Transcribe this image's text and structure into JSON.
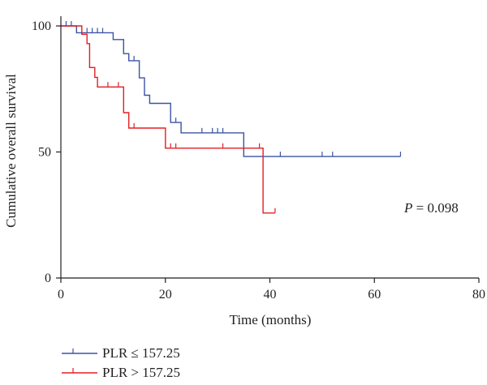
{
  "chart_data": {
    "type": "line",
    "subtype": "kaplan-meier",
    "title": "",
    "xlabel": "Time (months)",
    "ylabel": "Cumulative overall survival",
    "xlim": [
      0,
      80
    ],
    "ylim": [
      0,
      100
    ],
    "xticks": [
      0,
      20,
      40,
      60,
      80
    ],
    "yticks": [
      0,
      50,
      100
    ],
    "grid": false,
    "legend_position": "bottom-left",
    "annotation": {
      "prefix": "P",
      "text": " = 0.098"
    },
    "series": [
      {
        "name": "PLR ≤ 157.25",
        "color": "#3a53a4",
        "steps": [
          [
            0,
            100
          ],
          [
            3,
            100
          ],
          [
            3,
            97.3
          ],
          [
            10,
            97.3
          ],
          [
            10,
            94.6
          ],
          [
            12,
            94.6
          ],
          [
            12,
            89
          ],
          [
            13,
            89
          ],
          [
            13,
            86.2
          ],
          [
            15,
            86.2
          ],
          [
            15,
            79.4
          ],
          [
            16,
            79.4
          ],
          [
            16,
            72.5
          ],
          [
            17,
            72.5
          ],
          [
            17,
            69.3
          ],
          [
            21,
            69.3
          ],
          [
            21,
            61.7
          ],
          [
            23,
            61.7
          ],
          [
            23,
            57.6
          ],
          [
            35,
            57.6
          ],
          [
            35,
            48.2
          ],
          [
            65,
            48.2
          ]
        ],
        "censored": [
          [
            1,
            100
          ],
          [
            2,
            100
          ],
          [
            5,
            97.3
          ],
          [
            6,
            97.3
          ],
          [
            7,
            97.3
          ],
          [
            8,
            97.3
          ],
          [
            14,
            86.2
          ],
          [
            22,
            61.7
          ],
          [
            27,
            57.6
          ],
          [
            29,
            57.6
          ],
          [
            30,
            57.6
          ],
          [
            31,
            57.6
          ],
          [
            42,
            48.2
          ],
          [
            50,
            48.2
          ],
          [
            52,
            48.2
          ],
          [
            65,
            48.2
          ]
        ]
      },
      {
        "name": "PLR > 157.25",
        "color": "#e31e24",
        "steps": [
          [
            0,
            100
          ],
          [
            4,
            100
          ],
          [
            4,
            96.7
          ],
          [
            5,
            96.7
          ],
          [
            5,
            93
          ],
          [
            5.5,
            93
          ],
          [
            5.5,
            83.5
          ],
          [
            6.5,
            83.5
          ],
          [
            6.5,
            79.6
          ],
          [
            7,
            79.6
          ],
          [
            7,
            75.8
          ],
          [
            12,
            75.8
          ],
          [
            12,
            65.6
          ],
          [
            13,
            65.6
          ],
          [
            13,
            59.5
          ],
          [
            20,
            59.5
          ],
          [
            20,
            51.5
          ],
          [
            38.7,
            51.5
          ],
          [
            38.7,
            25.8
          ],
          [
            41,
            25.8
          ]
        ],
        "censored": [
          [
            9,
            75.8
          ],
          [
            11,
            75.8
          ],
          [
            14,
            59.5
          ],
          [
            21,
            51.5
          ],
          [
            22,
            51.5
          ],
          [
            31,
            51.5
          ],
          [
            38,
            51.5
          ],
          [
            41,
            25.8
          ]
        ]
      }
    ]
  }
}
